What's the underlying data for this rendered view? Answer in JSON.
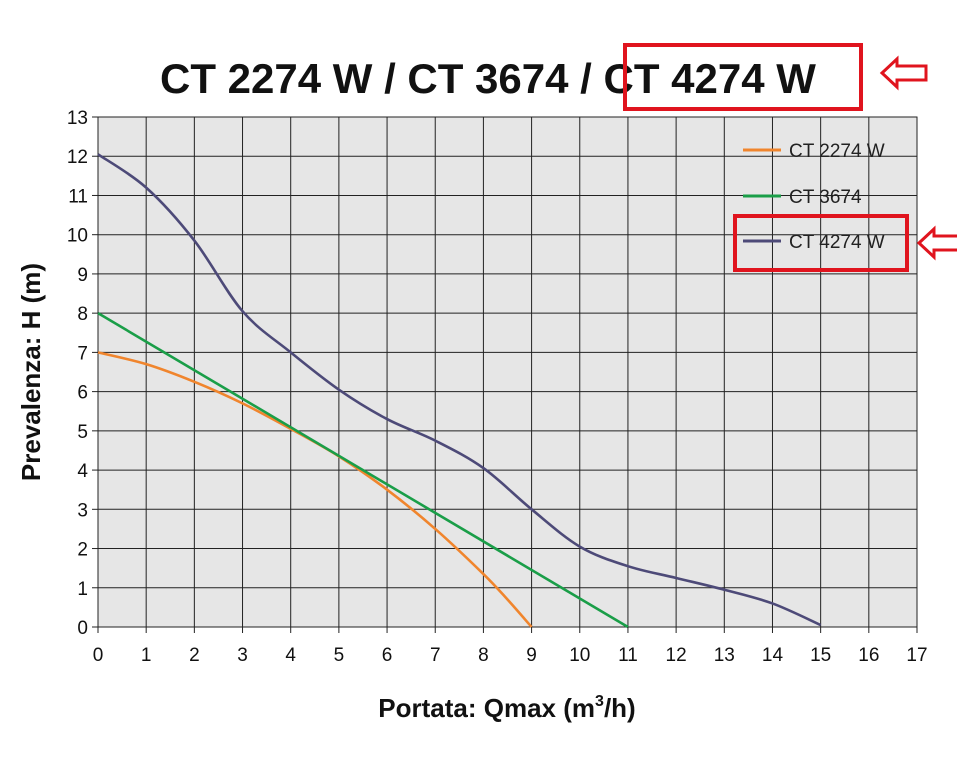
{
  "chart_data": {
    "type": "line",
    "title": "CT 2274 W / CT 3674 / CT 4274 W",
    "title_highlight": "CT 4274 W",
    "xlabel_main": "Portata: Qmax (m",
    "xlabel_sup": "3",
    "xlabel_end": "/h)",
    "ylabel": "Prevalenza: H (m)",
    "xlim": [
      0,
      17
    ],
    "ylim": [
      0,
      13
    ],
    "x_ticks": [
      0,
      1,
      2,
      3,
      4,
      5,
      6,
      7,
      8,
      9,
      10,
      11,
      12,
      13,
      14,
      15,
      16,
      17
    ],
    "y_ticks": [
      0,
      1,
      2,
      3,
      4,
      5,
      6,
      7,
      8,
      9,
      10,
      11,
      12,
      13
    ],
    "grid": true,
    "plot_background": "#e6e6e6",
    "legend_position": "top-right",
    "highlight_color": "#e0141e",
    "series": [
      {
        "name": "CT 2274 W",
        "color": "#f0852d",
        "x": [
          0,
          1,
          2,
          3,
          4,
          5,
          6,
          7,
          8,
          8.5,
          9
        ],
        "y": [
          7.0,
          6.7,
          6.25,
          5.7,
          5.05,
          4.35,
          3.5,
          2.5,
          1.35,
          0.7,
          0.0
        ]
      },
      {
        "name": "CT 3674",
        "color": "#1a9e48",
        "x": [
          0,
          11
        ],
        "y": [
          8.0,
          0.0
        ]
      },
      {
        "name": "CT 4274 W",
        "color": "#4d4a78",
        "highlighted": true,
        "x": [
          0,
          1,
          2,
          3,
          4,
          5,
          6,
          7,
          8,
          9,
          10,
          11,
          12,
          13,
          14,
          15
        ],
        "y": [
          12.05,
          11.2,
          9.85,
          8.05,
          7.0,
          6.05,
          5.3,
          4.75,
          4.05,
          3.0,
          2.05,
          1.55,
          1.25,
          0.95,
          0.6,
          0.05
        ]
      }
    ]
  }
}
